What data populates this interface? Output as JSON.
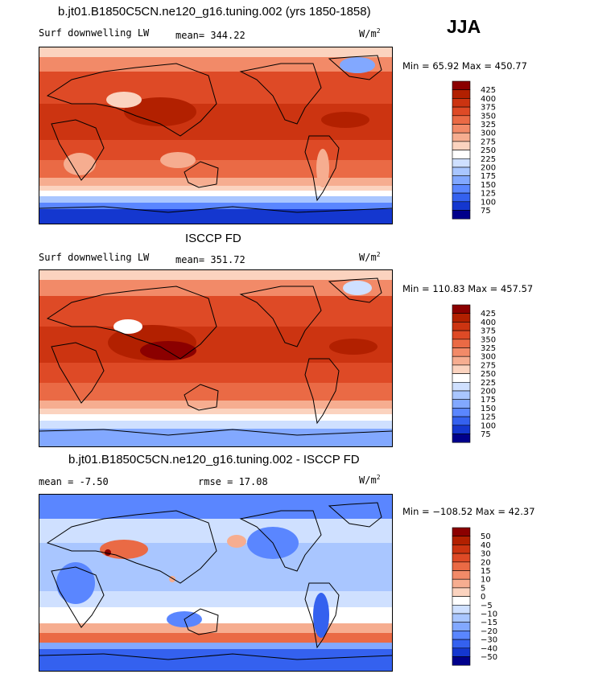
{
  "season": "JJA",
  "panels": [
    {
      "title": "b.jt01.B1850C5CN.ne120_g16.tuning.002 (yrs 1850-1858)",
      "variable": "Surf downwelling LW",
      "stat_text": "mean= 344.22",
      "units_base": "W/m",
      "units_exp": "2",
      "minmax": "Min =  65.92 Max = 450.77",
      "kind": "abs"
    },
    {
      "title": "ISCCP FD",
      "variable": "Surf downwelling LW",
      "stat_text": "mean= 351.72",
      "units_base": "W/m",
      "units_exp": "2",
      "minmax": "Min = 110.83 Max = 457.57",
      "kind": "abs"
    },
    {
      "title": "b.jt01.B1850C5CN.ne120_g16.tuning.002 - ISCCP FD",
      "stat_mean": "mean =  -7.50",
      "stat_rmse": "rmse =  17.08",
      "units_base": "W/m",
      "units_exp": "2",
      "minmax": "Min = −108.52 Max =  42.37",
      "kind": "diff"
    }
  ],
  "colorbars": {
    "abs": {
      "labels": [
        "425",
        "400",
        "375",
        "350",
        "325",
        "300",
        "275",
        "250",
        "225",
        "200",
        "175",
        "150",
        "125",
        "100",
        "75"
      ],
      "colors": [
        "#8b0000",
        "#b22000",
        "#cc3411",
        "#de4a26",
        "#ea6a45",
        "#f28a68",
        "#f6ad90",
        "#fbd3bf",
        "#ffffff",
        "#cfe0ff",
        "#a9c6ff",
        "#82a8ff",
        "#5a86ff",
        "#3461ef",
        "#1437cf",
        "#00008b"
      ]
    },
    "diff": {
      "labels": [
        "50",
        "40",
        "30",
        "20",
        "15",
        "10",
        "5",
        "0",
        "−5",
        "−10",
        "−15",
        "−20",
        "−30",
        "−40",
        "−50"
      ],
      "colors": [
        "#8b0000",
        "#b22000",
        "#cc3411",
        "#de4a26",
        "#ea6a45",
        "#f28a68",
        "#f6ad90",
        "#fbd3bf",
        "#ffffff",
        "#cfe0ff",
        "#a9c6ff",
        "#82a8ff",
        "#5a86ff",
        "#3461ef",
        "#1437cf",
        "#00008b"
      ]
    }
  }
}
